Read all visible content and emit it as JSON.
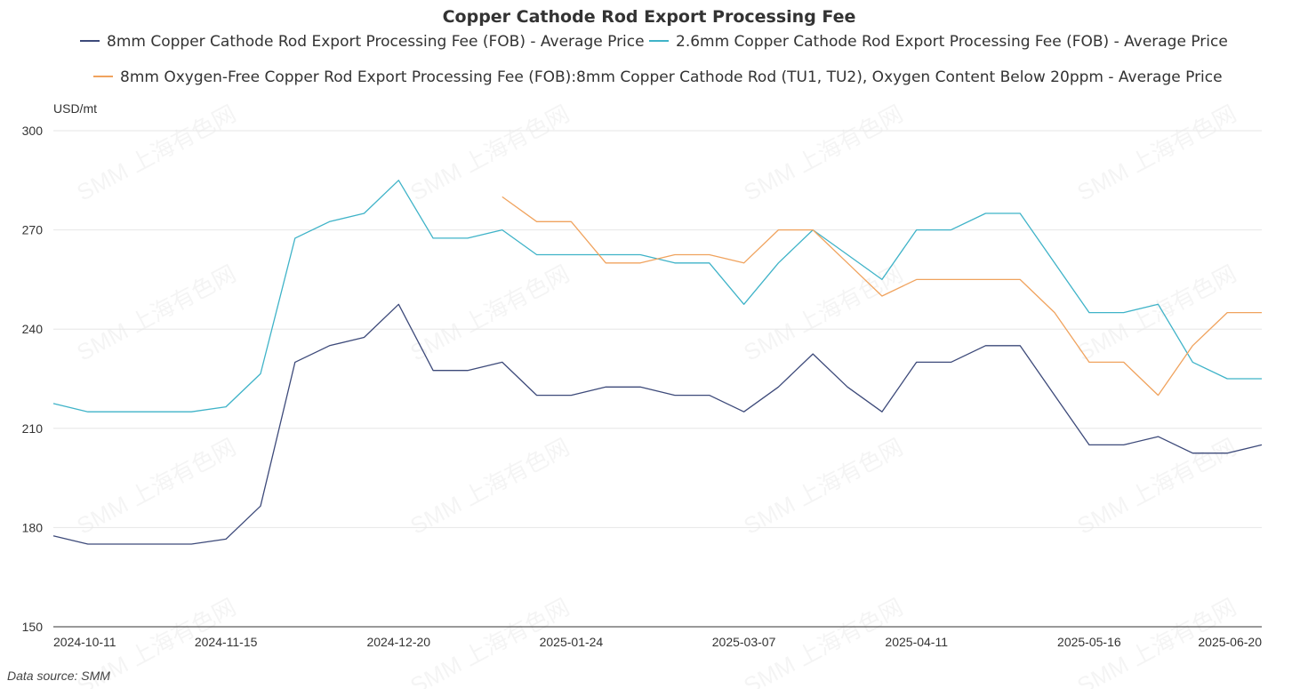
{
  "chart_data": {
    "type": "line",
    "title": "Copper Cathode Rod Export Processing Fee",
    "ylabel": "USD/mt",
    "ylim": [
      150,
      300
    ],
    "yticks": [
      150,
      180,
      210,
      240,
      270,
      300
    ],
    "grid": true,
    "legend_position": "top",
    "x_tick_labels": [
      "2024-10-11",
      "2024-11-15",
      "2024-12-20",
      "2025-01-24",
      "2025-03-07",
      "2025-04-11",
      "2025-05-16",
      "2025-06-20"
    ],
    "x_tick_indices": [
      0,
      5,
      10,
      15,
      20,
      25,
      30,
      35
    ],
    "series": [
      {
        "name": "8mm Copper Cathode Rod Export Processing Fee (FOB) - Average Price",
        "color": "#3d4a7a",
        "start": 0,
        "values": [
          177.5,
          175,
          175,
          175,
          175,
          176.5,
          186.5,
          230,
          235,
          237.5,
          247.5,
          227.5,
          227.5,
          230,
          220,
          220,
          222.5,
          222.5,
          220,
          220,
          215,
          222.5,
          232.5,
          222.5,
          215,
          230,
          230,
          235,
          235,
          220,
          205,
          205,
          207.5,
          202.5,
          202.5,
          205
        ]
      },
      {
        "name": "2.6mm Copper Cathode Rod Export Processing Fee (FOB) - Average Price",
        "color": "#3fb3c8",
        "start": 0,
        "values": [
          217.5,
          215,
          215,
          215,
          215,
          216.5,
          226.5,
          267.5,
          272.5,
          275,
          285,
          267.5,
          267.5,
          270,
          262.5,
          262.5,
          262.5,
          262.5,
          260,
          260,
          247.5,
          260,
          270,
          262.5,
          255,
          270,
          270,
          275,
          275,
          260,
          245,
          245,
          247.5,
          230,
          225,
          225
        ]
      },
      {
        "name": "8mm Oxygen-Free Copper Rod Export Processing Fee (FOB):8mm Copper Cathode Rod (TU1, TU2), Oxygen Content Below 20ppm - Average Price",
        "color": "#f0a35e",
        "start": 13,
        "values": [
          280,
          272.5,
          272.5,
          260,
          260,
          262.5,
          262.5,
          260,
          270,
          270,
          260,
          250,
          255,
          255,
          255,
          255,
          245,
          230,
          230,
          220,
          235,
          245,
          245
        ]
      }
    ],
    "source": "Data source:  SMM"
  },
  "watermark": "SMM 上海有色网"
}
